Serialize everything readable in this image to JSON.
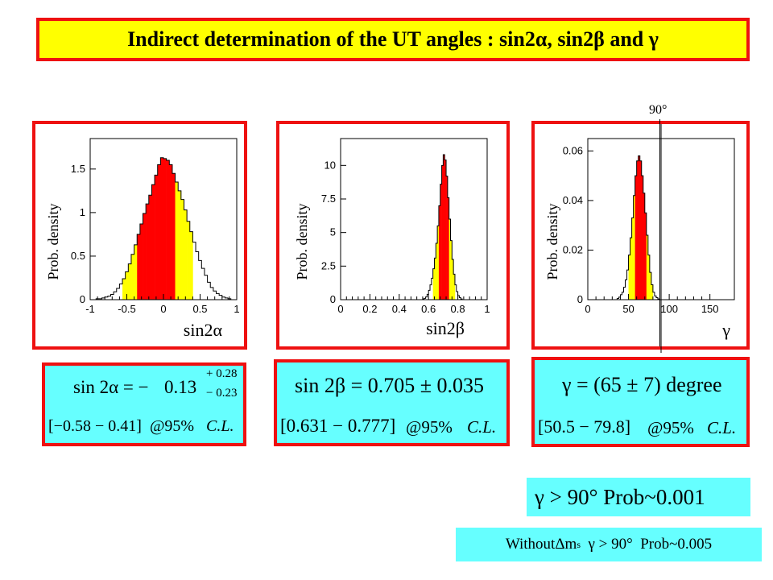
{
  "title": "Indirect determination of the UT angles : sin2α, sin2β and γ",
  "marker_90": "90°",
  "chart_data": [
    {
      "type": "bar",
      "name_key": "sin2alpha",
      "xlabel": "sin2α",
      "ylabel": "Prob. density",
      "xlim": [
        -1,
        1
      ],
      "ylim": [
        0,
        1.85
      ],
      "xticks": [
        -1,
        -0.5,
        0,
        0.5,
        1
      ],
      "xtick_labels": [
        "-1",
        "-0.5",
        "0",
        "0.5",
        "1"
      ],
      "yticks": [
        0,
        0.5,
        1,
        1.5
      ],
      "ytick_labels": [
        "0",
        "0.5",
        "1",
        "1.5"
      ],
      "bin_width": 0.04,
      "bin_start": -0.92,
      "values": [
        0.01,
        0.01,
        0.02,
        0.03,
        0.04,
        0.06,
        0.09,
        0.13,
        0.18,
        0.24,
        0.32,
        0.41,
        0.52,
        0.63,
        0.75,
        0.87,
        0.99,
        1.1,
        1.2,
        1.32,
        1.43,
        1.55,
        1.63,
        1.62,
        1.6,
        1.55,
        1.45,
        1.35,
        1.25,
        1.15,
        1.03,
        0.9,
        0.78,
        0.66,
        0.55,
        0.45,
        0.36,
        0.28,
        0.2,
        0.14,
        0.1,
        0.07,
        0.05,
        0.03,
        0.02,
        0.01
      ],
      "band_95": [
        -0.58,
        0.41
      ],
      "band_68": [
        -0.36,
        0.15
      ],
      "colors": {
        "band_95": "#ffff00",
        "band_68": "#ff0000"
      }
    },
    {
      "type": "bar",
      "name_key": "sin2beta",
      "xlabel": "sin2β",
      "ylabel": "Prob. density",
      "xlim": [
        0,
        1
      ],
      "ylim": [
        0,
        12
      ],
      "xticks": [
        0,
        0.2,
        0.4,
        0.6,
        0.8,
        1
      ],
      "xtick_labels": [
        "0",
        "0.2",
        "0.4",
        "0.6",
        "0.8",
        "1"
      ],
      "yticks": [
        0,
        2.5,
        5,
        7.5,
        10
      ],
      "ytick_labels": [
        "0",
        "2.5",
        "5",
        "7.5",
        "10"
      ],
      "bin_width": 0.01,
      "bin_start": 0.56,
      "values": [
        0.05,
        0.1,
        0.2,
        0.4,
        0.7,
        1.1,
        1.6,
        2.3,
        3.1,
        4.2,
        5.5,
        7.0,
        8.6,
        10.0,
        10.8,
        10.4,
        9.2,
        7.6,
        6.0,
        4.4,
        3.0,
        1.9,
        1.1,
        0.6,
        0.3,
        0.15,
        0.05
      ],
      "band_95": [
        0.631,
        0.777
      ],
      "band_68": [
        0.67,
        0.74
      ],
      "colors": {
        "band_95": "#ffff00",
        "band_68": "#ff0000"
      }
    },
    {
      "type": "bar",
      "name_key": "gamma",
      "xlabel": "γ",
      "ylabel": "Prob. density",
      "xlim": [
        0,
        180
      ],
      "ylim": [
        0,
        0.065
      ],
      "xticks": [
        0,
        50,
        100,
        150
      ],
      "xtick_labels": [
        "0",
        "50",
        "100",
        "150"
      ],
      "yticks": [
        0,
        0.02,
        0.04,
        0.06
      ],
      "ytick_labels": [
        "0",
        "0.02",
        "0.04",
        "0.06"
      ],
      "bin_width": 2,
      "bin_start": 36,
      "values": [
        0.0005,
        0.001,
        0.002,
        0.003,
        0.005,
        0.008,
        0.012,
        0.018,
        0.025,
        0.033,
        0.042,
        0.05,
        0.056,
        0.058,
        0.056,
        0.05,
        0.043,
        0.035,
        0.026,
        0.018,
        0.011,
        0.006,
        0.003,
        0.0015,
        0.0008,
        0.0003
      ],
      "band_95": [
        50.5,
        79.8
      ],
      "band_68": [
        58,
        72
      ],
      "vline": 90,
      "colors": {
        "band_95": "#ffff00",
        "band_68": "#ff0000"
      }
    }
  ],
  "formulas": {
    "alpha": {
      "lhs": "sin 2α = −",
      "value": "0.13",
      "plus": "+ 0.28",
      "minus": "− 0.23",
      "range": "[−0.58 − 0.41]",
      "at": "@95%",
      "cl": "C.L."
    },
    "beta": {
      "main": "sin 2β = 0.705 ± 0.035",
      "range": "[0.631 − 0.777]",
      "at": "@95%",
      "cl": "C.L."
    },
    "gamma": {
      "main": "γ = (65 ± 7) degree",
      "range": "[50.5 − 79.8]",
      "at": "@95%",
      "cl": "C.L."
    }
  },
  "prob_text": "γ > 90°  Prob~0.001",
  "without": {
    "prefix": "Without ",
    "delta": "Δm",
    "sub": "s",
    "suffix": "  γ > 90°  Prob~0.005"
  }
}
